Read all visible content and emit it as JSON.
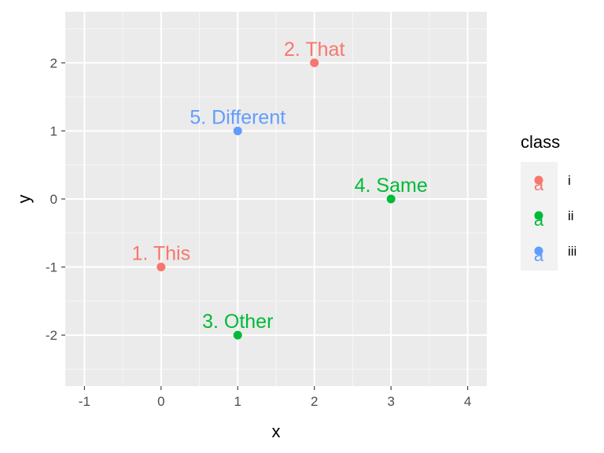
{
  "chart_data": {
    "type": "scatter",
    "xlabel": "x",
    "ylabel": "y",
    "xlim": [
      -1.25,
      4.25
    ],
    "ylim": [
      -2.75,
      2.75
    ],
    "x_ticks": [
      -1,
      0,
      1,
      2,
      3,
      4
    ],
    "y_ticks": [
      -2,
      -1,
      0,
      1,
      2
    ],
    "grid": true,
    "legend": {
      "title": "class",
      "position": "right",
      "entries": [
        {
          "label": "i",
          "color": "#F8766D"
        },
        {
          "label": "ii",
          "color": "#00BA38"
        },
        {
          "label": "iii",
          "color": "#619CFF"
        }
      ],
      "key_glyph": "a"
    },
    "points": [
      {
        "x": 0,
        "y": -1,
        "label": "1. This",
        "class": "i"
      },
      {
        "x": 2,
        "y": 2,
        "label": "2. That",
        "class": "i"
      },
      {
        "x": 1,
        "y": -2,
        "label": "3. Other",
        "class": "ii"
      },
      {
        "x": 3,
        "y": 0,
        "label": "4. Same",
        "class": "ii"
      },
      {
        "x": 1,
        "y": 1,
        "label": "5. Different",
        "class": "iii"
      }
    ]
  },
  "colors": {
    "panel_background": "#EBEBEB",
    "grid_major": "#FFFFFF",
    "grid_minor": "#F7F7F7"
  }
}
